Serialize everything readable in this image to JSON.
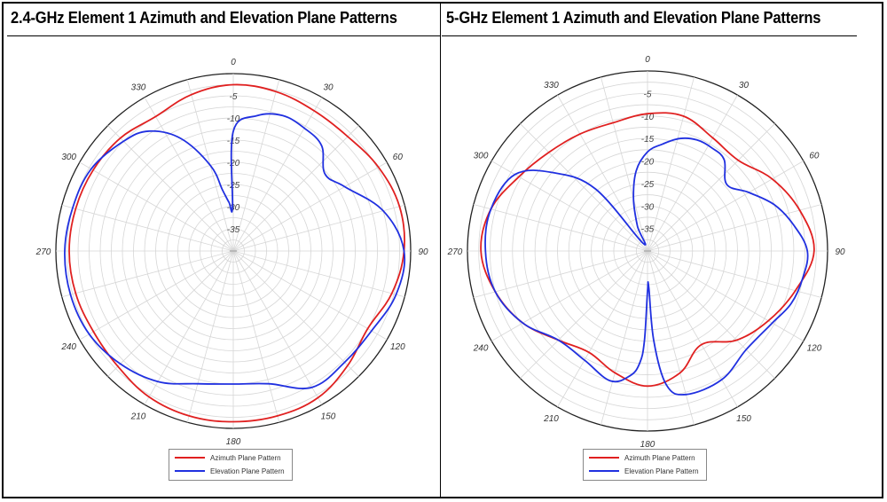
{
  "chart_data": [
    {
      "type": "polar",
      "title": "2.4-GHz Element 1 Azimuth and Elevation Plane Patterns",
      "angle_ticks": [
        "0",
        "30",
        "60",
        "90",
        "120",
        "150",
        "180",
        "210",
        "240",
        "270",
        "300",
        "330"
      ],
      "radial_ticks": [
        "-5",
        "-10",
        "-15",
        "-20",
        "-25",
        "-30",
        "-35"
      ],
      "radial_range_db": [
        -40,
        0
      ],
      "grid": true,
      "legend_position": "bottom-center",
      "series": [
        {
          "name": "Azimuth Plane Pattern",
          "color": "#e02020",
          "angles_deg": [
            0,
            15,
            30,
            45,
            60,
            75,
            90,
            105,
            120,
            135,
            150,
            165,
            180,
            195,
            210,
            225,
            240,
            255,
            270,
            285,
            300,
            315,
            330,
            345
          ],
          "values_db": [
            -2.5,
            -2.8,
            -3.5,
            -3.5,
            -2.2,
            -1.2,
            -1.5,
            -3,
            -5,
            -3.5,
            -1.8,
            -1.5,
            -1.5,
            -1.5,
            -2,
            -3.2,
            -3.6,
            -3.2,
            -3,
            -3.2,
            -3.5,
            -4,
            -5,
            -3.5
          ]
        },
        {
          "name": "Elevation Plane Pattern",
          "color": "#2030e0",
          "angles_deg": [
            0,
            10,
            20,
            30,
            40,
            50,
            60,
            75,
            90,
            105,
            120,
            135,
            150,
            165,
            180,
            195,
            210,
            225,
            240,
            255,
            270,
            285,
            300,
            315,
            325,
            335,
            345,
            350,
            355,
            359
          ],
          "values_db": [
            -13,
            -9,
            -7.5,
            -8,
            -9,
            -13,
            -11,
            -5,
            -1.5,
            -2,
            -4,
            -4.5,
            -4.5,
            -9,
            -10,
            -9,
            -6,
            -4,
            -2.5,
            -2,
            -2,
            -2.5,
            -3,
            -5,
            -7,
            -12,
            -20,
            -26,
            -29,
            -30
          ]
        }
      ]
    },
    {
      "type": "polar",
      "title": "5-GHz Element 1 Azimuth and Elevation Plane Patterns",
      "angle_ticks": [
        "0",
        "30",
        "60",
        "90",
        "120",
        "150",
        "180",
        "210",
        "240",
        "270",
        "300",
        "330"
      ],
      "radial_ticks": [
        "-5",
        "-10",
        "-15",
        "-20",
        "-25",
        "-30",
        "-35"
      ],
      "radial_range_db": [
        -40,
        0
      ],
      "grid": true,
      "legend_position": "bottom-center",
      "series": [
        {
          "name": "Azimuth Plane Pattern",
          "color": "#e02020",
          "angles_deg": [
            0,
            15,
            30,
            45,
            60,
            75,
            90,
            105,
            120,
            135,
            150,
            165,
            180,
            195,
            210,
            225,
            240,
            255,
            270,
            285,
            300,
            315,
            330,
            345
          ],
          "values_db": [
            -9.5,
            -9,
            -11,
            -11.5,
            -8,
            -5,
            -3,
            -6,
            -9,
            -12,
            -16,
            -12,
            -10,
            -12,
            -14,
            -12,
            -8,
            -5,
            -3,
            -4,
            -7,
            -9,
            -10,
            -10.5
          ]
        },
        {
          "name": "Elevation Plane Pattern",
          "color": "#2030e0",
          "angles_deg": [
            0,
            8,
            16,
            24,
            32,
            40,
            50,
            60,
            70,
            80,
            90,
            100,
            110,
            120,
            135,
            150,
            165,
            172,
            176,
            178,
            180,
            182,
            184,
            188,
            196,
            210,
            225,
            240,
            255,
            270,
            285,
            300,
            310,
            320,
            330,
            338,
            345,
            352
          ],
          "values_db": [
            -18,
            -16,
            -14,
            -13,
            -13,
            -13.5,
            -17,
            -14,
            -10,
            -7,
            -4.5,
            -5,
            -6,
            -8,
            -9,
            -7,
            -7,
            -10,
            -20,
            -32,
            -31,
            -20,
            -15,
            -12,
            -10,
            -12,
            -12,
            -8,
            -5,
            -4,
            -4,
            -6,
            -13,
            -22,
            -38,
            -34,
            -28,
            -22
          ]
        }
      ]
    }
  ]
}
